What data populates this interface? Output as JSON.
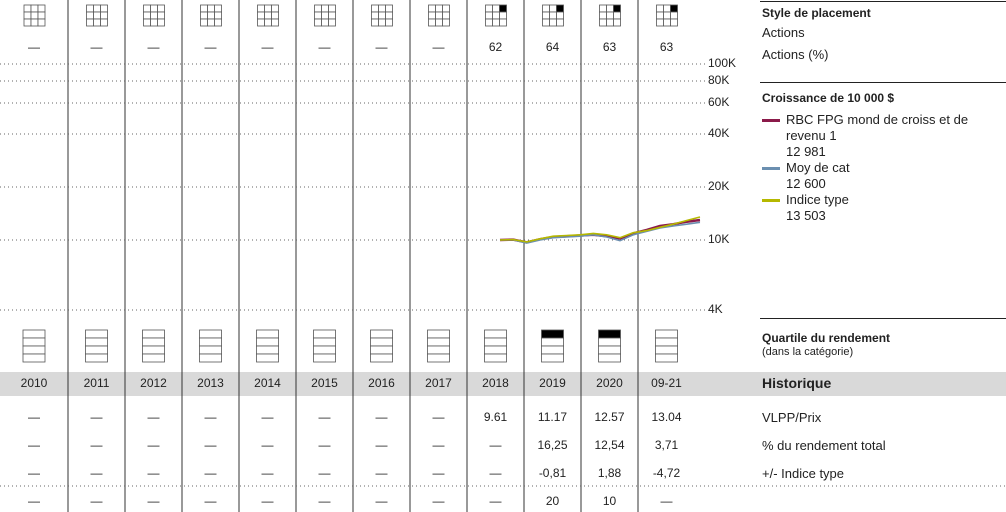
{
  "columns": [
    "2010",
    "2011",
    "2012",
    "2013",
    "2014",
    "2015",
    "2016",
    "2017",
    "2018",
    "2019",
    "2020",
    "09-21"
  ],
  "style": {
    "title": "Style de placement",
    "lines": [
      "Actions",
      "Actions (%)"
    ],
    "filled": [
      false,
      false,
      false,
      false,
      false,
      false,
      false,
      false,
      true,
      true,
      true,
      true
    ],
    "equity": [
      "—",
      "—",
      "—",
      "—",
      "—",
      "—",
      "—",
      "—",
      "62",
      "64",
      "63",
      "63"
    ]
  },
  "quartile": {
    "title": "Quartile du rendement",
    "subtitle": "(dans la catégorie)",
    "values": [
      null,
      null,
      null,
      null,
      null,
      null,
      null,
      null,
      null,
      1,
      1,
      null
    ]
  },
  "history": {
    "title": "Historique",
    "rows": [
      {
        "label": "VLPP/Prix",
        "values": [
          "—",
          "—",
          "—",
          "—",
          "—",
          "—",
          "—",
          "—",
          "9.61",
          "11.17",
          "12.57",
          "13.04"
        ]
      },
      {
        "label": "% du rendement total",
        "values": [
          "—",
          "—",
          "—",
          "—",
          "—",
          "—",
          "—",
          "—",
          "—",
          "16,25",
          "12,54",
          "3,71"
        ]
      },
      {
        "label": "+/- Indice type",
        "values": [
          "—",
          "—",
          "—",
          "—",
          "—",
          "—",
          "—",
          "—",
          "—",
          "-0,81",
          "1,88",
          "-4,72"
        ]
      },
      {
        "values": [
          "—",
          "—",
          "—",
          "—",
          "—",
          "—",
          "—",
          "—",
          "—",
          "20",
          "10",
          "—"
        ]
      }
    ]
  },
  "chart_data": {
    "type": "line",
    "title": "Croissance de 10 000 $",
    "log": true,
    "ylim": [
      4000,
      100000
    ],
    "yticks": [
      {
        "value": 100000,
        "label": "100K"
      },
      {
        "value": 80000,
        "label": "80K"
      },
      {
        "value": 60000,
        "label": "60K"
      },
      {
        "value": 40000,
        "label": "40K"
      },
      {
        "value": 20000,
        "label": "20K"
      },
      {
        "value": 10000,
        "label": "10K"
      },
      {
        "value": 4000,
        "label": "4K"
      }
    ],
    "series": [
      {
        "name": "RBC FPG mond de croiss et de revenu 1",
        "legend_value": "12 981",
        "color": "#8b1a4a",
        "values": [
          10000,
          10050,
          9700,
          10100,
          10400,
          10500,
          10600,
          10700,
          10500,
          10200,
          10900,
          11400,
          12000,
          12300,
          12700,
          12981
        ]
      },
      {
        "name": "Moy de cat",
        "legend_value": "12 600",
        "color": "#6b8fb0",
        "values": [
          10000,
          10000,
          9600,
          10000,
          10300,
          10400,
          10500,
          10700,
          10400,
          9900,
          10700,
          11200,
          11700,
          12000,
          12300,
          12600
        ]
      },
      {
        "name": "Indice type",
        "legend_value": "13 503",
        "color": "#b5b800",
        "values": [
          10000,
          10050,
          9750,
          10150,
          10500,
          10600,
          10700,
          10900,
          10700,
          10300,
          11000,
          11300,
          11800,
          12300,
          12900,
          13503
        ]
      }
    ]
  }
}
